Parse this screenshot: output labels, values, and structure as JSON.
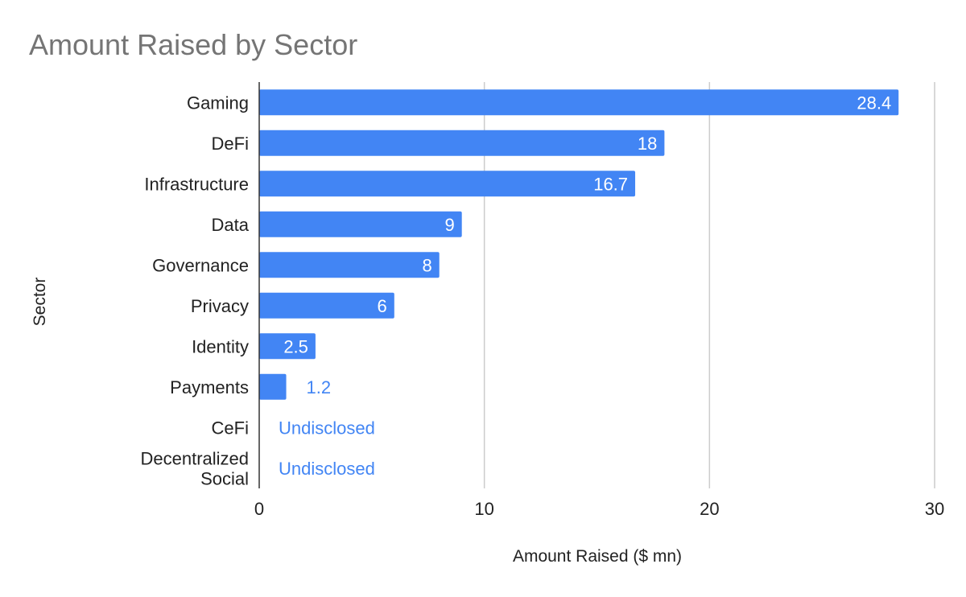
{
  "chart_data": {
    "type": "bar",
    "orientation": "horizontal",
    "title": "Amount Raised by Sector",
    "xlabel": "Amount Raised ($ mn)",
    "ylabel": "Sector",
    "xlim": [
      0,
      30
    ],
    "xticks": [
      "0",
      "10",
      "20",
      "30"
    ],
    "grid": true,
    "bar_color": "#4285f4",
    "categories": [
      [
        "Gaming"
      ],
      [
        "DeFi"
      ],
      [
        "Infrastructure"
      ],
      [
        "Data"
      ],
      [
        "Governance"
      ],
      [
        "Privacy"
      ],
      [
        "Identity"
      ],
      [
        "Payments"
      ],
      [
        "CeFi"
      ],
      [
        "Decentralized",
        "Social"
      ]
    ],
    "values": [
      28.4,
      18,
      16.7,
      9,
      8,
      6,
      2.5,
      1.2,
      null,
      null
    ],
    "labels": [
      "28.4",
      "18",
      "16.7",
      "9",
      "8",
      "6",
      "2.5",
      "1.2",
      "Undisclosed",
      "Undisclosed"
    ]
  }
}
